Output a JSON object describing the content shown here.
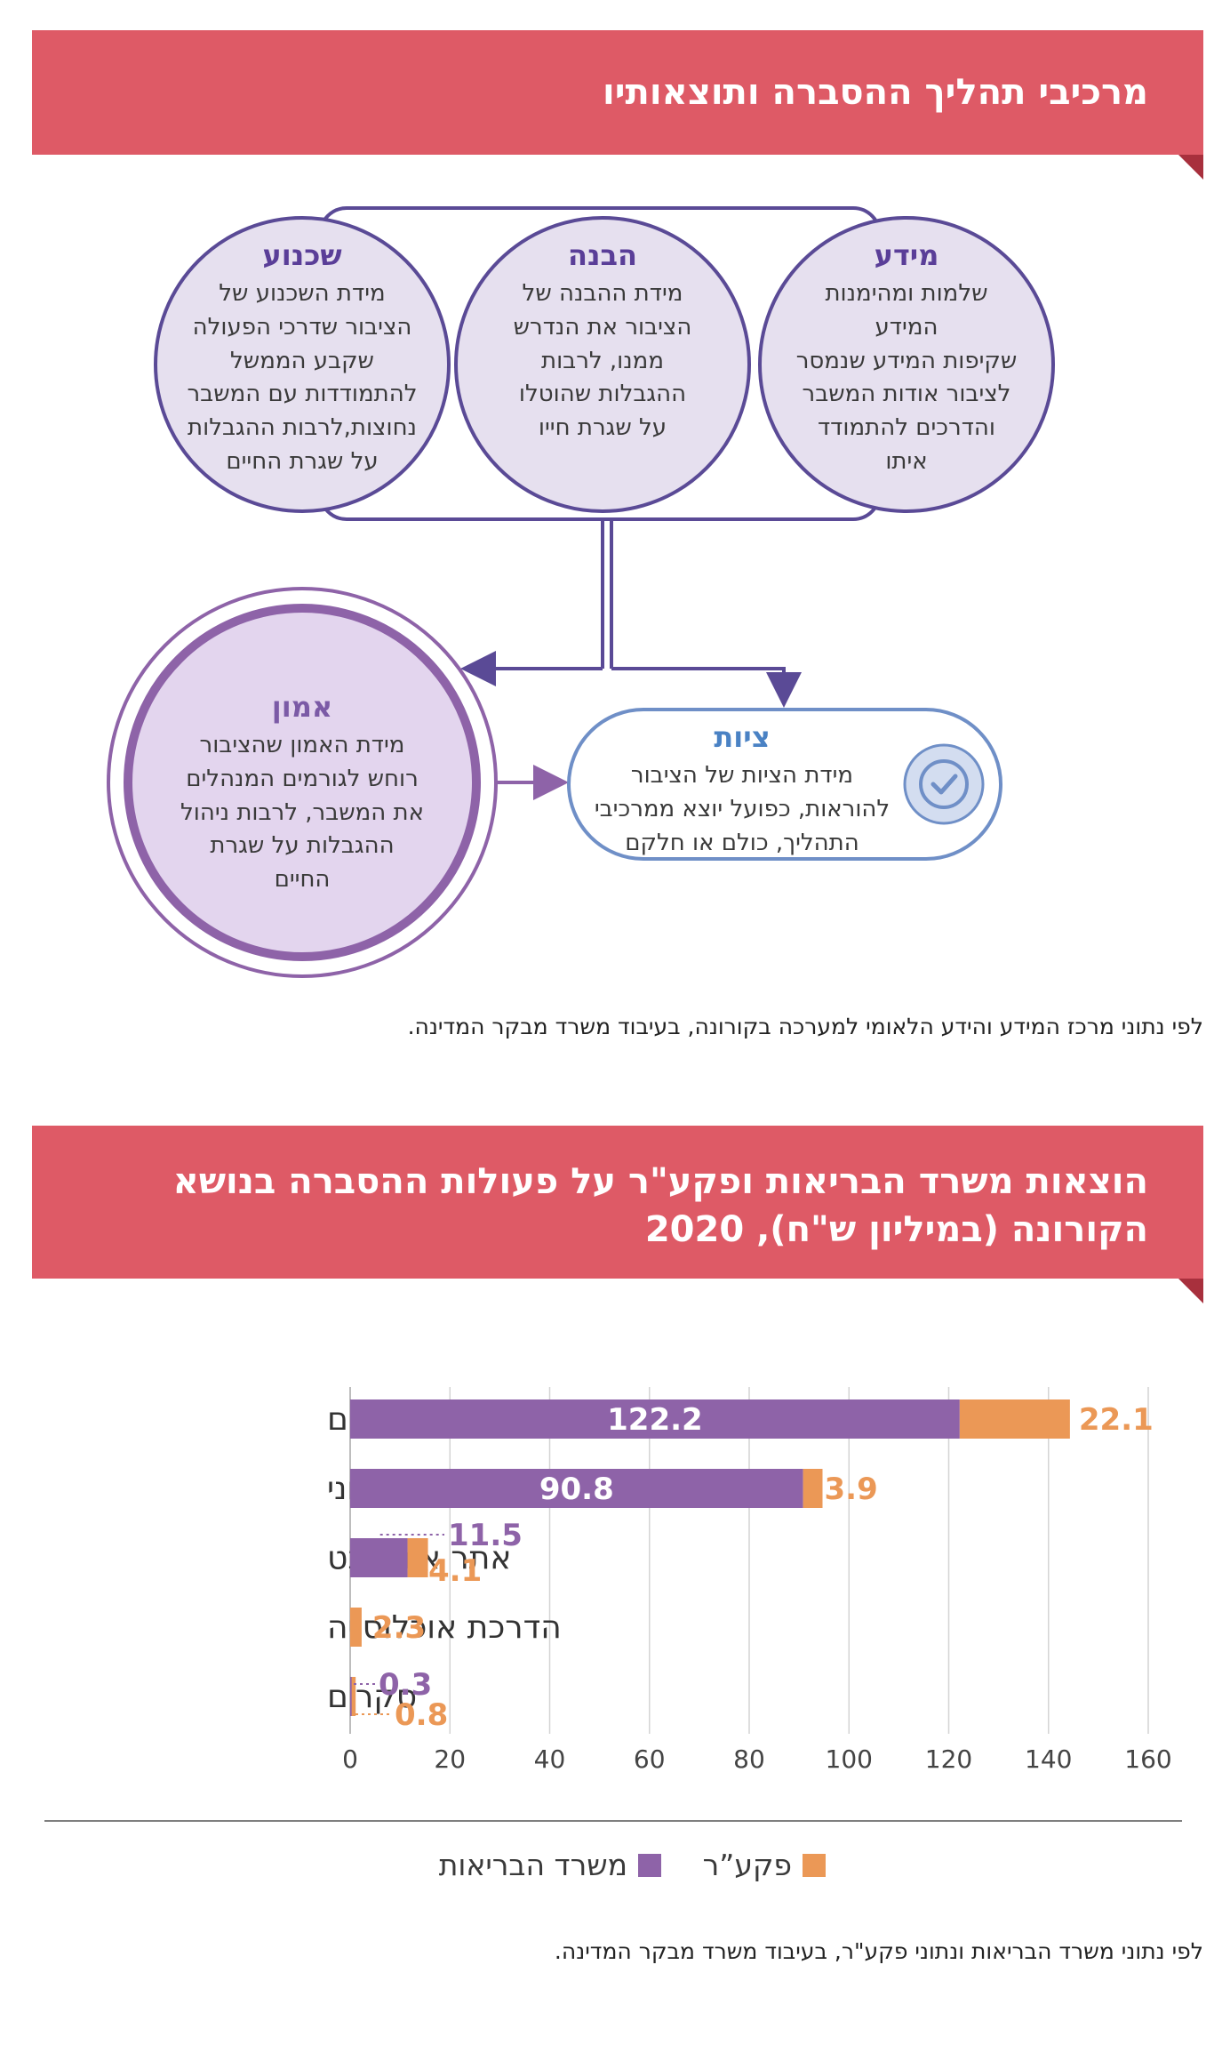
{
  "section1": {
    "title": "מרכיבי תהליך ההסברה ותוצאותיו",
    "circles": {
      "meida": {
        "title": "מידע",
        "lines": [
          "שלמות ומהימנות",
          "המידע",
          "שקיפות המידע שנמסר",
          "לציבור אודות המשבר",
          "והדרכים להתמודד",
          "איתו"
        ]
      },
      "havana": {
        "title": "הבנה",
        "lines": [
          "מידת ההבנה של",
          "הציבור את הנדרש",
          "ממנו, לרבות",
          "ההגבלות שהוטלו",
          "על שגרת חייו"
        ]
      },
      "shichnua": {
        "title": "שכנוע",
        "lines": [
          "מידת השכנוע של",
          "הציבור שדרכי הפעולה",
          "שקבע הממשל",
          "להתמודדות עם המשבר",
          "נחוצות,לרבות ההגבלות",
          "על שגרת החיים"
        ]
      },
      "emun": {
        "title": "אמון",
        "lines": [
          "מידת האמון שהציבור",
          "רוחש לגורמים המנהלים",
          "את המשבר, לרבות ניהול",
          "ההגבלות על שגרת",
          "החיים"
        ]
      },
      "tziut": {
        "title": "ציות",
        "lines": [
          "מידת הציות של הציבור",
          "להוראות, כפועל יוצא ממרכיבי",
          "התהליך, כולם או חלקם"
        ]
      }
    },
    "source": "לפי נתוני מרכז המידע והידע הלאומי למערכה בקורונה, בעיבוד משרד מבקר המדינה."
  },
  "section2": {
    "title_line1": "הוצאות משרד הבריאות ופקע\"ר על פעולות ההסברה בנושא",
    "title_line2": "הקורונה (במיליון ש\"ח), 2020",
    "source": "לפי נתוני משרד הבריאות ונתוני פקע\"ר, בעיבוד משרד מבקר המדינה."
  },
  "colors": {
    "banner": "#de5a66",
    "purple": "#8e63a8",
    "orange": "#eb9856",
    "circle_stroke": "#5a4a96",
    "circle_fill": "#e6e0ef"
  },
  "chart_data": {
    "type": "bar",
    "orientation": "horizontal",
    "stacked": true,
    "categories": [
      "מסעות פרסום",
      "מוקד מידע טלפוני",
      "אתר אינטרנט",
      "הדרכת אוכלוסייה",
      "סקרים"
    ],
    "series": [
      {
        "name": "משרד הבריאות",
        "color": "#8e63a8",
        "values": [
          122.2,
          90.8,
          11.5,
          0,
          0.3
        ],
        "labels": [
          "122.2",
          "90.8",
          "11.5",
          "",
          "0.3"
        ]
      },
      {
        "name": "פקע”ר",
        "color": "#eb9856",
        "values": [
          22.1,
          3.9,
          4.1,
          2.3,
          0.8
        ],
        "labels": [
          "22.1",
          "3.9",
          "4.1",
          "2.3",
          "0.8"
        ]
      }
    ],
    "xlim": [
      0,
      160
    ],
    "xticks": [
      "0",
      "20",
      "40",
      "60",
      "80",
      "100",
      "120",
      "140",
      "160"
    ],
    "grid": true,
    "legend": "bottom"
  }
}
